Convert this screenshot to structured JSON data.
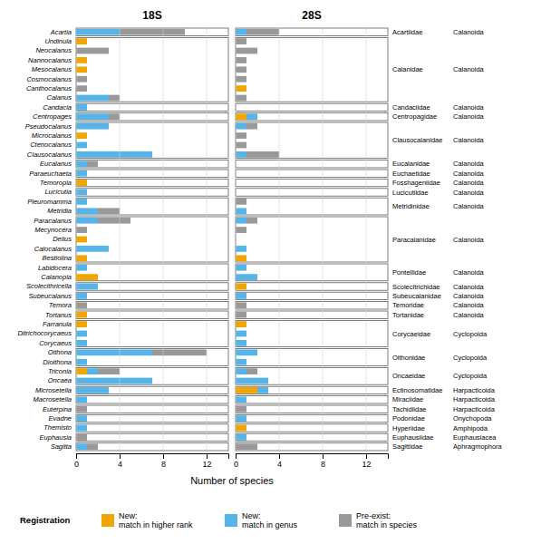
{
  "chart_data": [
    {
      "type": "bar",
      "orientation": "horizontal",
      "stacked": true,
      "grid": true,
      "legend": "bottom",
      "title": "18S",
      "xlabel": "Number of species",
      "annotations": [
        {
          "text": "Registration"
        }
      ],
      "categories": [
        "Acartia",
        "Undinula",
        "Neocalanus",
        "Nannocalanus",
        "Mesocalanus",
        "Cosmocalanus",
        "Canthocalanus",
        "Calanus",
        "Candacia",
        "Centropages",
        "Pseudocalanus",
        "Microcalanus",
        "Ctenocalanus",
        "Clausocalanus",
        "Eucalanus",
        "Paraeuchaeta",
        "Temoropia",
        "Lucicutia",
        "Pleuromamma",
        "Metridia",
        "Paracalanus",
        "Mecynocera",
        "Delius",
        "Calocalanus",
        "Bestiolina",
        "Labidocera",
        "Calanopia",
        "Scolecithricella",
        "Subeucalanus",
        "Temora",
        "Tortanus",
        "Farranula",
        "Ditrichocorycaeus",
        "Corycaeus",
        "Oithona",
        "Dioithona",
        "Triconia",
        "Oncaea",
        "Microsetella",
        "Macrosetella",
        "Euterpina",
        "Evadne",
        "Themisto",
        "Euphausia",
        "Sagitta"
      ],
      "series": [
        {
          "name": "New:\nmatch in higher rank",
          "color": "#F0A500",
          "values": [
            0,
            1,
            0,
            1,
            1,
            0,
            0,
            0,
            0,
            0,
            0,
            1,
            0,
            0,
            0,
            0,
            1,
            0,
            0,
            0,
            0,
            0,
            1,
            0,
            1,
            0,
            2,
            0,
            0,
            0,
            1,
            1,
            0,
            0,
            0,
            0,
            1,
            0,
            0,
            0,
            0,
            0,
            0,
            0,
            0
          ]
        },
        {
          "name": "New:\nmatch in genus",
          "color": "#56B4E9",
          "values": [
            4,
            0,
            0,
            0,
            0,
            0,
            0,
            3,
            1,
            3,
            3,
            0,
            1,
            7,
            1,
            1,
            0,
            1,
            1,
            2,
            2,
            0,
            0,
            3,
            0,
            1,
            0,
            2,
            1,
            0,
            0,
            0,
            1,
            1,
            7,
            1,
            1,
            7,
            3,
            1,
            0,
            1,
            1,
            0,
            1
          ]
        },
        {
          "name": "Pre-exist:\nmatch in species",
          "color": "#999999",
          "values": [
            6,
            0,
            3,
            0,
            0,
            1,
            1,
            1,
            0,
            1,
            0,
            0,
            0,
            0,
            1,
            0,
            0,
            0,
            0,
            2,
            3,
            1,
            0,
            0,
            0,
            0,
            0,
            0,
            0,
            1,
            0,
            0,
            0,
            0,
            5,
            0,
            2,
            0,
            0,
            0,
            1,
            0,
            0,
            1,
            1
          ]
        }
      ],
      "xlim": [
        0,
        14
      ],
      "xticks": [
        0,
        4,
        8,
        12
      ]
    },
    {
      "type": "bar",
      "orientation": "horizontal",
      "stacked": true,
      "grid": true,
      "tick_labels": "x",
      "title": "28S",
      "families": [
        "Acartiidae",
        "Calanidae",
        "Calanidae",
        "Calanidae",
        "Calanidae",
        "Calanidae",
        "Calanidae",
        "Calanidae",
        "Candaciidae",
        "Centropagidae",
        "Clausocalanidae",
        "Clausocalanidae",
        "Clausocalanidae",
        "Clausocalanidae",
        "Eucalanidae",
        "Euchaetidae",
        "Fosshageniidae",
        "Lucicutiidae",
        "Metridinidae",
        "Metridinidae",
        "Paracalanidae",
        "Paracalanidae",
        "Paracalanidae",
        "Paracalanidae",
        "Paracalanidae",
        "Pontellidae",
        "Pontellidae",
        "Scolecitrichidae",
        "Subeucalanidae",
        "Temoridae",
        "Tortanidae",
        "Corycaeidae",
        "Corycaeidae",
        "Corycaeidae",
        "Oithonidae",
        "Oithonidae",
        "Oncaeidae",
        "Oncaeidae",
        "Ectinosomatidae",
        "Miraciidae",
        "Tachidiidae",
        "Podonidae",
        "Hyperiidae",
        "Euphausiidae",
        "Sagittidae"
      ],
      "orders": [
        "Calanoida",
        "Calanoida",
        "Calanoida",
        "Calanoida",
        "Calanoida",
        "Calanoida",
        "Calanoida",
        "Calanoida",
        "Calanoida",
        "Calanoida",
        "Calanoida",
        "Calanoida",
        "Calanoida",
        "Calanoida",
        "Calanoida",
        "Calanoida",
        "Calanoida",
        "Calanoida",
        "Calanoida",
        "Calanoida",
        "Calanoida",
        "Calanoida",
        "Calanoida",
        "Calanoida",
        "Calanoida",
        "Calanoida",
        "Calanoida",
        "Calanoida",
        "Calanoida",
        "Calanoida",
        "Calanoida",
        "Cyclopoida",
        "Cyclopoida",
        "Cyclopoida",
        "Cyclopoida",
        "Cyclopoida",
        "Cyclopoida",
        "Cyclopoida",
        "Harpacticoida",
        "Harpacticoida",
        "Harpacticoida",
        "Onychopoda",
        "Amphipoda",
        "Euphausiacea",
        "Aphragmophora"
      ],
      "series": [
        {
          "color": "#F0A500",
          "values": [
            0,
            0,
            0,
            0,
            0,
            0,
            1,
            0,
            0,
            1,
            0,
            0,
            0,
            0,
            0,
            0,
            0,
            0,
            0,
            0,
            0,
            0,
            0,
            0,
            1,
            0,
            0,
            1,
            0,
            0,
            0,
            1,
            0,
            0,
            0,
            0,
            0,
            0,
            2,
            0,
            0,
            0,
            1,
            0,
            0
          ]
        },
        {
          "color": "#56B4E9",
          "values": [
            1,
            0,
            0,
            0,
            0,
            0,
            0,
            0,
            0,
            1,
            1,
            0,
            0,
            1,
            0,
            0,
            0,
            0,
            0,
            1,
            1,
            0,
            0,
            1,
            0,
            1,
            2,
            0,
            1,
            0,
            0,
            0,
            1,
            1,
            2,
            1,
            1,
            3,
            1,
            1,
            0,
            1,
            0,
            1,
            0
          ]
        },
        {
          "color": "#999999",
          "values": [
            3,
            1,
            2,
            1,
            1,
            1,
            0,
            1,
            0,
            0,
            1,
            1,
            1,
            3,
            0,
            0,
            0,
            0,
            1,
            0,
            1,
            1,
            0,
            0,
            0,
            0,
            0,
            0,
            0,
            1,
            1,
            0,
            0,
            0,
            0,
            0,
            1,
            0,
            0,
            0,
            1,
            0,
            0,
            0,
            2
          ]
        }
      ],
      "xlim": [
        0,
        14
      ],
      "xticks": [
        0,
        4,
        8,
        12
      ]
    }
  ]
}
